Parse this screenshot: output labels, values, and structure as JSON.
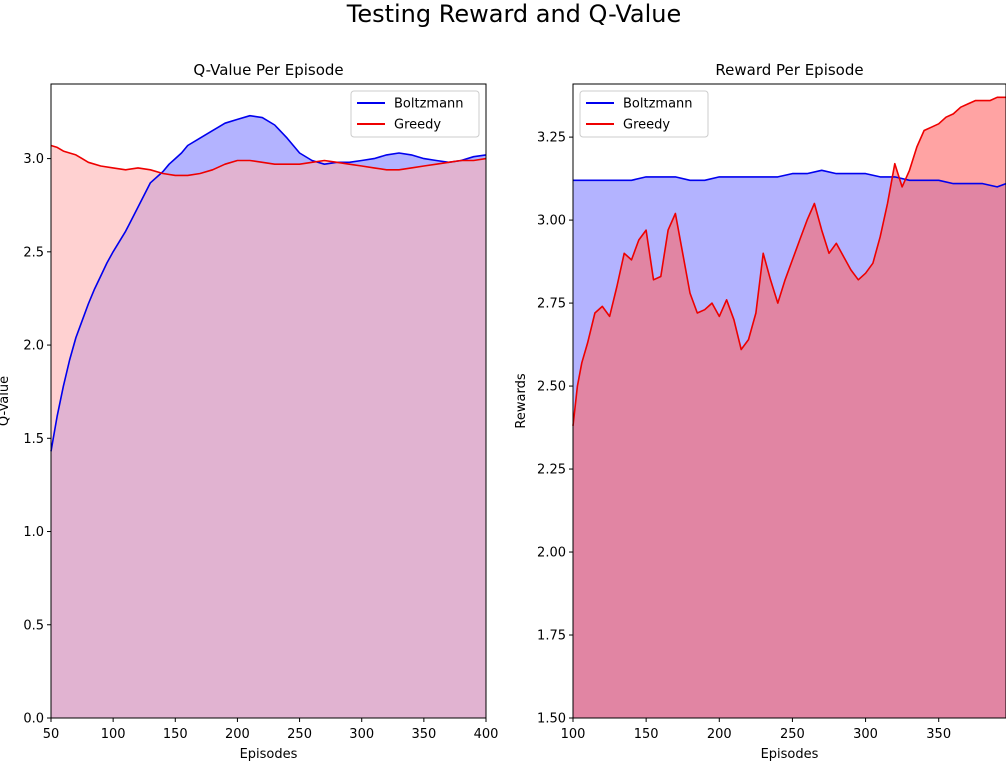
{
  "title": "Testing Reward and Q-Value",
  "chart_data": [
    {
      "type": "area",
      "title": "Q-Value Per Episode",
      "xlabel": "Episodes",
      "ylabel": "Q-Value",
      "xlim": [
        50,
        400
      ],
      "ylim": [
        0,
        3.4
      ],
      "xticks": [
        50,
        100,
        150,
        200,
        250,
        300,
        350,
        400
      ],
      "yticks": [
        0.0,
        0.5,
        1.0,
        1.5,
        2.0,
        2.5,
        3.0
      ],
      "ytick_labels": [
        "0.0",
        "0.5",
        "1.0",
        "1.5",
        "2.0",
        "2.5",
        "3.0"
      ],
      "legend_position": "top-right",
      "grid": false,
      "series": [
        {
          "name": "Boltzmann",
          "color": "#0000ee",
          "fill": "#b3b3ff",
          "x": [
            50,
            55,
            60,
            65,
            70,
            75,
            80,
            85,
            90,
            95,
            100,
            110,
            120,
            130,
            140,
            145,
            150,
            155,
            160,
            170,
            180,
            190,
            200,
            210,
            220,
            230,
            240,
            250,
            260,
            270,
            280,
            290,
            300,
            310,
            320,
            330,
            340,
            350,
            360,
            370,
            380,
            390,
            400
          ],
          "y": [
            1.43,
            1.62,
            1.78,
            1.92,
            2.04,
            2.13,
            2.22,
            2.3,
            2.37,
            2.44,
            2.5,
            2.61,
            2.74,
            2.87,
            2.93,
            2.97,
            3.0,
            3.03,
            3.07,
            3.11,
            3.15,
            3.19,
            3.21,
            3.23,
            3.22,
            3.18,
            3.11,
            3.03,
            2.99,
            2.97,
            2.98,
            2.98,
            2.99,
            3.0,
            3.02,
            3.03,
            3.02,
            3.0,
            2.99,
            2.98,
            2.99,
            3.01,
            3.02
          ]
        },
        {
          "name": "Greedy",
          "color": "#ee0000",
          "fill": "#ffb3b3",
          "x": [
            50,
            55,
            60,
            65,
            70,
            75,
            80,
            90,
            100,
            110,
            120,
            130,
            140,
            150,
            160,
            170,
            180,
            190,
            200,
            210,
            220,
            230,
            240,
            250,
            260,
            270,
            280,
            290,
            300,
            310,
            320,
            330,
            340,
            350,
            360,
            370,
            380,
            390,
            400
          ],
          "y": [
            3.07,
            3.06,
            3.04,
            3.03,
            3.02,
            3.0,
            2.98,
            2.96,
            2.95,
            2.94,
            2.95,
            2.94,
            2.92,
            2.91,
            2.91,
            2.92,
            2.94,
            2.97,
            2.99,
            2.99,
            2.98,
            2.97,
            2.97,
            2.97,
            2.98,
            2.99,
            2.98,
            2.97,
            2.96,
            2.95,
            2.94,
            2.94,
            2.95,
            2.96,
            2.97,
            2.98,
            2.99,
            2.99,
            3.0
          ]
        }
      ]
    },
    {
      "type": "area",
      "title": "Reward Per Episode",
      "xlabel": "Episodes",
      "ylabel": "Rewards",
      "xlim": [
        100,
        396
      ],
      "ylim": [
        1.5,
        3.41
      ],
      "xticks": [
        100,
        150,
        200,
        250,
        300,
        350
      ],
      "yticks": [
        1.5,
        1.75,
        2.0,
        2.25,
        2.5,
        2.75,
        3.0,
        3.25
      ],
      "ytick_labels": [
        "1.50",
        "1.75",
        "2.00",
        "2.25",
        "2.50",
        "2.75",
        "3.00",
        "3.25"
      ],
      "legend_position": "top-left",
      "grid": false,
      "series": [
        {
          "name": "Boltzmann",
          "color": "#0000ee",
          "fill": "#b3b3ff",
          "x": [
            100,
            110,
            120,
            130,
            140,
            150,
            160,
            170,
            180,
            190,
            200,
            210,
            220,
            230,
            240,
            250,
            260,
            270,
            280,
            290,
            300,
            310,
            320,
            330,
            340,
            350,
            360,
            370,
            380,
            390,
            396
          ],
          "y": [
            3.12,
            3.12,
            3.12,
            3.12,
            3.12,
            3.13,
            3.13,
            3.13,
            3.12,
            3.12,
            3.13,
            3.13,
            3.13,
            3.13,
            3.13,
            3.14,
            3.14,
            3.15,
            3.14,
            3.14,
            3.14,
            3.13,
            3.13,
            3.12,
            3.12,
            3.12,
            3.11,
            3.11,
            3.11,
            3.1,
            3.11
          ]
        },
        {
          "name": "Greedy",
          "color": "#ee0000",
          "fill": "#ff6666",
          "x": [
            100,
            103,
            106,
            110,
            115,
            120,
            125,
            130,
            135,
            140,
            145,
            150,
            155,
            160,
            165,
            170,
            175,
            180,
            185,
            190,
            195,
            200,
            205,
            210,
            215,
            220,
            225,
            230,
            235,
            240,
            245,
            250,
            255,
            260,
            265,
            270,
            275,
            280,
            285,
            290,
            295,
            300,
            305,
            310,
            315,
            320,
            325,
            330,
            335,
            340,
            345,
            350,
            355,
            360,
            365,
            370,
            375,
            380,
            385,
            390,
            396
          ],
          "y": [
            2.38,
            2.5,
            2.57,
            2.63,
            2.72,
            2.74,
            2.71,
            2.8,
            2.9,
            2.88,
            2.94,
            2.97,
            2.82,
            2.83,
            2.97,
            3.02,
            2.9,
            2.78,
            2.72,
            2.73,
            2.75,
            2.71,
            2.76,
            2.7,
            2.61,
            2.64,
            2.72,
            2.9,
            2.82,
            2.75,
            2.82,
            2.88,
            2.94,
            3.0,
            3.05,
            2.97,
            2.9,
            2.93,
            2.89,
            2.85,
            2.82,
            2.84,
            2.87,
            2.95,
            3.05,
            3.17,
            3.1,
            3.15,
            3.22,
            3.27,
            3.28,
            3.29,
            3.31,
            3.32,
            3.34,
            3.35,
            3.36,
            3.36,
            3.36,
            3.37,
            3.37
          ]
        }
      ]
    }
  ]
}
